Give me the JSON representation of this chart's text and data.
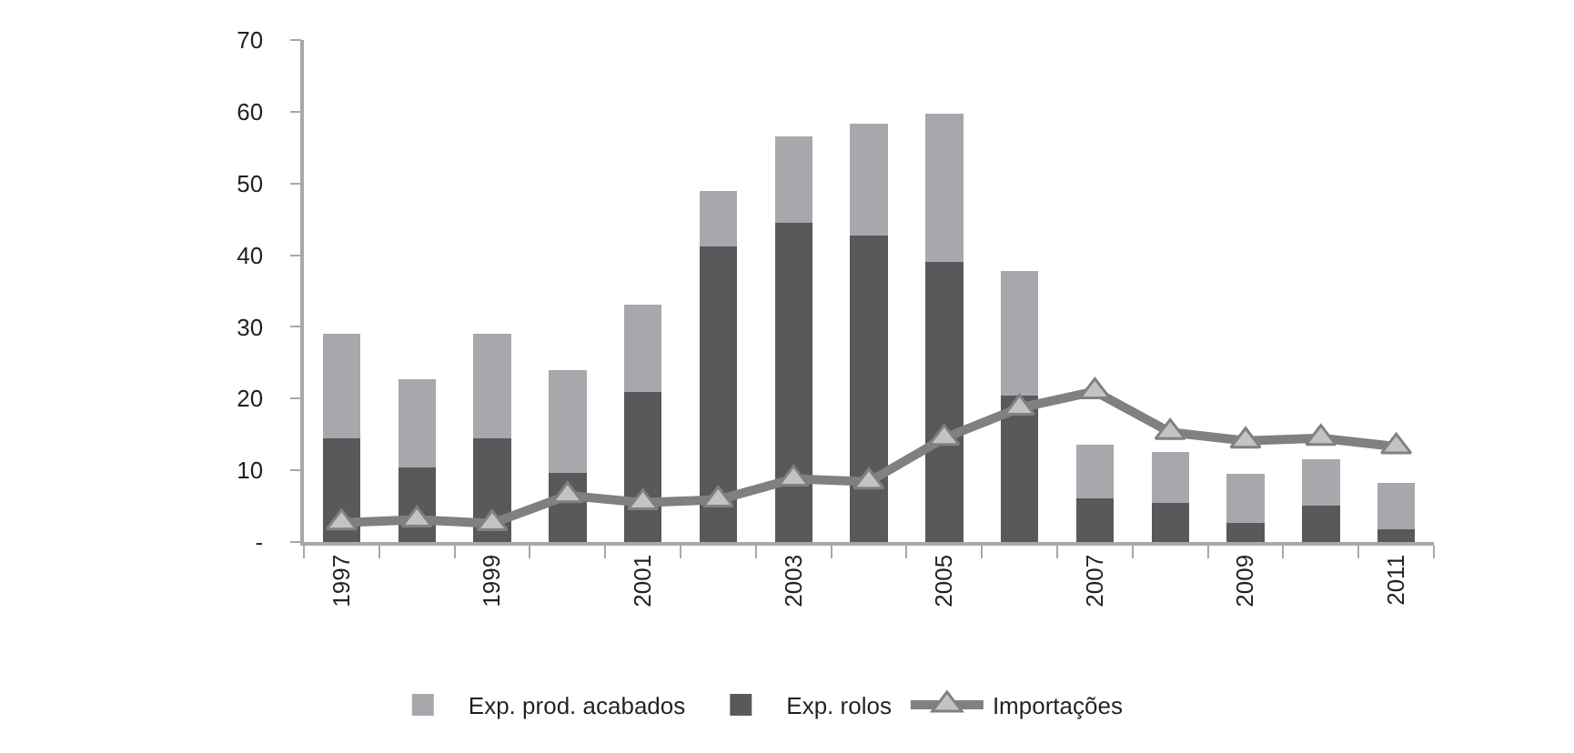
{
  "chart_data": {
    "type": "bar",
    "stacked": true,
    "categories": [
      "1997",
      null,
      "1999",
      null,
      "2001",
      null,
      "2003",
      null,
      "2005",
      null,
      "2007",
      null,
      "2009",
      null,
      "2011"
    ],
    "series": [
      {
        "name": "Exp. rolos",
        "color": "#58595b",
        "values": [
          14.5,
          10.4,
          14.5,
          9.6,
          20.9,
          41.2,
          44.5,
          42.8,
          39.1,
          20.4,
          6.1,
          5.4,
          2.7,
          5.1,
          1.8
        ]
      },
      {
        "name": "Exp. prod. acabados",
        "color": "#a7a8ab",
        "values": [
          14.5,
          12.3,
          14.5,
          14.4,
          12.2,
          7.8,
          12.1,
          15.5,
          20.6,
          17.4,
          7.5,
          7.2,
          6.8,
          6.4,
          6.4
        ]
      },
      {
        "name": "Importações",
        "type": "line",
        "color": "#808080",
        "values": [
          2.7,
          3.1,
          2.6,
          6.5,
          5.5,
          5.9,
          8.8,
          8.4,
          14.5,
          18.7,
          21.0,
          15.3,
          14.1,
          14.5,
          13.3
        ]
      }
    ],
    "ylim": [
      0,
      70
    ],
    "yticks": [
      {
        "value": 0,
        "label": "-"
      },
      10,
      20,
      30,
      40,
      50,
      60,
      70
    ],
    "grid": false,
    "legend": "bottom",
    "marker": "triangle",
    "line_style": "solid"
  }
}
